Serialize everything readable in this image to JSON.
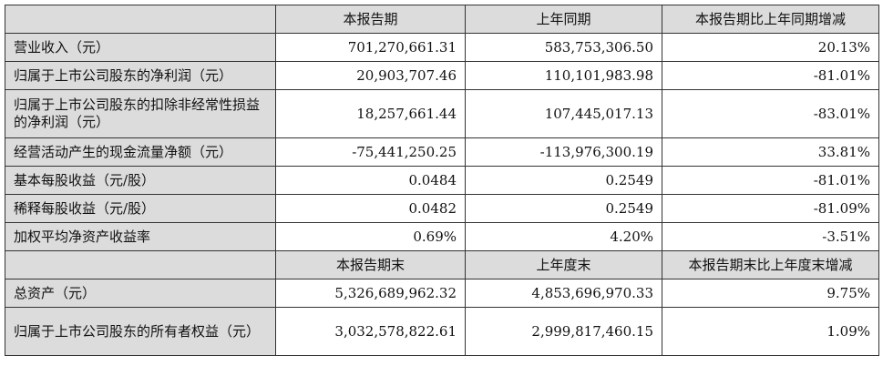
{
  "header1": [
    "",
    "本报告期",
    "上年同期",
    "本报告期比上年同期增减"
  ],
  "rows1": [
    {
      "label": "营业收入（元）",
      "values": [
        "701,270,661.31",
        "583,753,306.50",
        "20.13%"
      ]
    },
    {
      "label": "归属于上市公司股东的净利润（元）",
      "values": [
        "20,903,707.46",
        "110,101,983.98",
        "-81.01%"
      ]
    },
    {
      "label": "归属于上市公司股东的扣除非经常性损益的净利润（元）",
      "values": [
        "18,257,661.44",
        "107,445,017.13",
        "-83.01%"
      ]
    },
    {
      "label": "经营活动产生的现金流量净额（元）",
      "values": [
        "-75,441,250.25",
        "-113,976,300.19",
        "33.81%"
      ]
    },
    {
      "label": "基本每股收益（元/股）",
      "values": [
        "0.0484",
        "0.2549",
        "-81.01%"
      ]
    },
    {
      "label": "稀释每股收益（元/股）",
      "values": [
        "0.0482",
        "0.2549",
        "-81.09%"
      ]
    },
    {
      "label": "加权平均净资产收益率",
      "values": [
        "0.69%",
        "4.20%",
        "-3.51%"
      ]
    }
  ],
  "header2": [
    "",
    "本报告期末",
    "上年度末",
    "本报告期末比上年度末增减"
  ],
  "rows2": [
    {
      "label": "总资产（元）",
      "values": [
        "5,326,689,962.32",
        "4,853,696,970.33",
        "9.75%"
      ]
    },
    {
      "label": "归属于上市公司股东的所有者权益（元）",
      "values": [
        "3,032,578,822.61",
        "2,999,817,460.15",
        "1.09%"
      ]
    }
  ]
}
